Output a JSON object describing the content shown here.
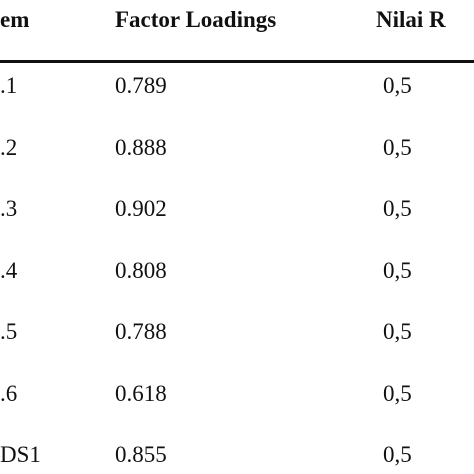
{
  "table": {
    "header": [
      "em",
      "Factor Loadings",
      "Nilai R"
    ],
    "rows": [
      [
        ".1",
        "0.789",
        "0,5"
      ],
      [
        ".2",
        "0.888",
        "0,5"
      ],
      [
        ".3",
        "0.902",
        "0,5"
      ],
      [
        ".4",
        "0.808",
        "0,5"
      ],
      [
        ".5",
        "0.788",
        "0,5"
      ],
      [
        ".6",
        "0.618",
        "0,5"
      ],
      [
        "DS1",
        "0.855",
        "0,5"
      ]
    ]
  }
}
